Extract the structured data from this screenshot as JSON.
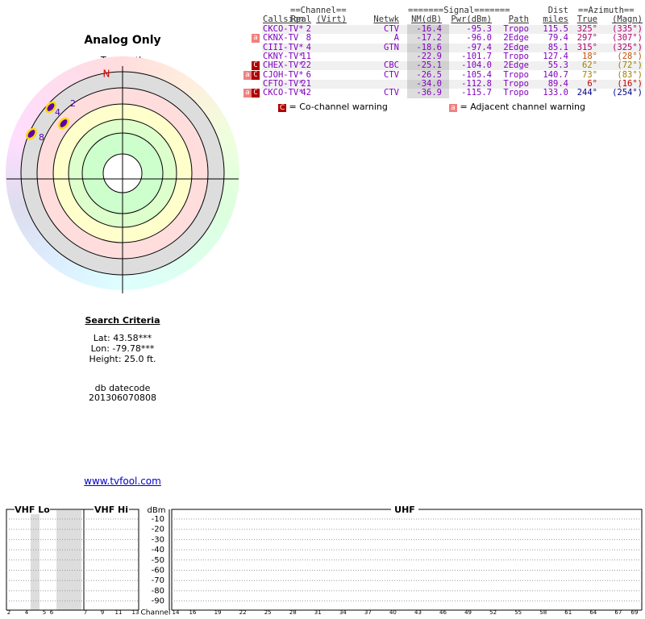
{
  "header": {
    "title": "Analog Only",
    "compass": "TrueNorth",
    "north": "N"
  },
  "radar": {
    "markers": [
      {
        "label": "2"
      },
      {
        "label": "4"
      },
      {
        "label": "8"
      }
    ]
  },
  "table": {
    "group_headers": [
      "==Channel==",
      "=======Signal=======",
      "==Azimuth=="
    ],
    "dist_top": "Dist",
    "columns": [
      "Callsign",
      "Real",
      "(Virt)",
      "Netwk",
      "NM(dB)",
      "Pwr(dBm)",
      "Path",
      "miles",
      "True",
      "(Magn)"
    ],
    "rows": [
      {
        "cells": [
          "CKCO-TV*",
          "2",
          null,
          "CTV",
          "-16.4",
          "-95.3",
          "Tropo",
          "115.5",
          "325°",
          "(335°)"
        ],
        "azimuth_color": "#b0006e"
      },
      {
        "warnings": [
          "a"
        ],
        "cells": [
          "CKNX-TV",
          "8",
          null,
          "A",
          "-17.2",
          "-96.0",
          "2Edge",
          "79.4",
          "297°",
          "(307°)"
        ],
        "azimuth_color": "#b0006e"
      },
      {
        "cells": [
          "CIII-TV*",
          "4",
          null,
          "GTN",
          "-18.6",
          "-97.4",
          "2Edge",
          "85.1",
          "315°",
          "(325°)"
        ],
        "azimuth_color": "#b0006e"
      },
      {
        "cells": [
          "CKNY-TV*",
          "11",
          null,
          null,
          "-22.9",
          "-101.7",
          "Tropo",
          "127.4",
          "18°",
          "(28°)"
        ],
        "azimuth_color": "#c05000"
      },
      {
        "warnings": [
          "C"
        ],
        "cells": [
          "CHEX-TV*",
          "22",
          null,
          "CBC",
          "-25.1",
          "-104.0",
          "2Edge",
          "55.3",
          "62°",
          "(72°)"
        ],
        "azimuth_color": "#a08000"
      },
      {
        "warnings": [
          "a",
          "C"
        ],
        "cells": [
          "CJOH-TV*",
          "6",
          null,
          "CTV",
          "-26.5",
          "-105.4",
          "Tropo",
          "140.7",
          "73°",
          "(83°)"
        ],
        "azimuth_color": "#a08000"
      },
      {
        "cells": [
          "CFTO-TV*",
          "21",
          null,
          null,
          "-34.0",
          "-112.8",
          "Tropo",
          "89.4",
          "6°",
          "(16°)"
        ],
        "azimuth_color": "#c00000"
      },
      {
        "warnings": [
          "a",
          "C"
        ],
        "cells": [
          "CKCO-TV*",
          "42",
          null,
          "CTV",
          "-36.9",
          "-115.7",
          "Tropo",
          "133.0",
          "244°",
          "(254°)"
        ],
        "azimuth_color": "#00008c"
      }
    ]
  },
  "legend": {
    "co_symbol": "C",
    "co_text": "= Co-channel warning",
    "adj_symbol": "a",
    "adj_text": "= Adjacent channel warning"
  },
  "search": {
    "title": "Search Criteria",
    "lat": "Lat: 43.58***",
    "lon": "Lon: -79.78***",
    "height": "Height: 25.0 ft.",
    "datecode_label": "db datecode",
    "datecode": "201306070808"
  },
  "link": "www.tvfool.com",
  "spectrum": {
    "bands": [
      "VHF Lo",
      "VHF Hi",
      "UHF"
    ],
    "unit": "dBm",
    "yticks": [
      "-10",
      "-20",
      "-30",
      "-40",
      "-50",
      "-60",
      "-70",
      "-80",
      "-90"
    ],
    "x_label": "Channel",
    "vhf_lo_channels": [
      "2",
      "4",
      "5",
      "6"
    ],
    "vhf_hi_channels": [
      "7",
      "9",
      "11",
      "13"
    ],
    "uhf_channels": [
      "14",
      "16",
      "19",
      "22",
      "25",
      "28",
      "31",
      "34",
      "37",
      "40",
      "43",
      "46",
      "49",
      "52",
      "55",
      "58",
      "61",
      "64",
      "67",
      "69"
    ]
  }
}
